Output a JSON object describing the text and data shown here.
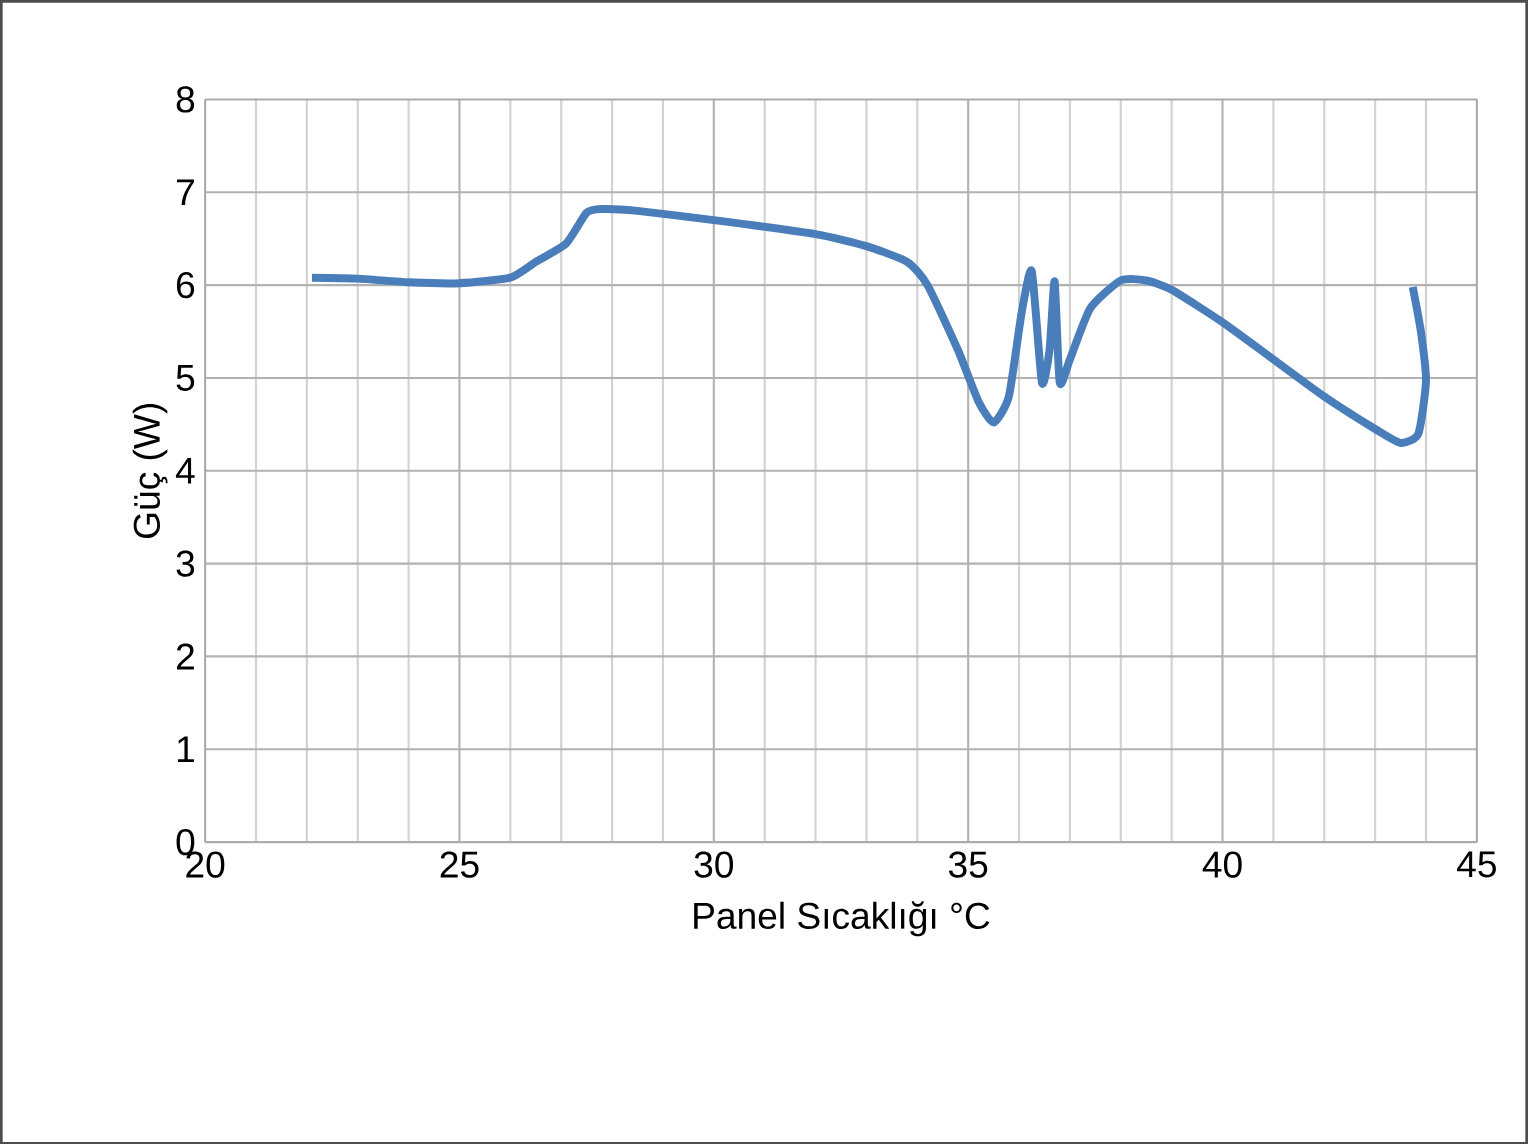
{
  "chart_data": {
    "type": "line",
    "xlabel": "Panel Sıcaklığı °C",
    "ylabel": "Güç (W)",
    "xlim": [
      20,
      45
    ],
    "ylim": [
      0,
      8
    ],
    "xticks": [
      20,
      25,
      30,
      35,
      40,
      45
    ],
    "yticks": [
      0,
      1,
      2,
      3,
      4,
      5,
      6,
      7,
      8
    ],
    "grid": true,
    "series": [
      {
        "color": "#4a7ebb",
        "x": [
          22.1,
          23,
          24,
          25,
          26,
          26.5,
          27.1,
          27.5,
          27.8,
          28.5,
          30,
          32,
          33,
          33.8,
          34.2,
          34.8,
          35.2,
          35.5,
          35.8,
          36.05,
          36.25,
          36.45,
          36.6,
          36.7,
          36.8,
          37.0,
          37.4,
          38,
          38.5,
          39,
          40,
          41,
          42,
          43,
          43.5,
          43.85,
          44.0,
          43.9,
          43.74
        ],
        "values": [
          6.08,
          6.07,
          6.03,
          6.02,
          6.08,
          6.25,
          6.45,
          6.78,
          6.82,
          6.8,
          6.7,
          6.55,
          6.42,
          6.25,
          6.0,
          5.3,
          4.75,
          4.52,
          4.8,
          5.7,
          6.15,
          4.95,
          5.3,
          6.04,
          4.95,
          5.2,
          5.75,
          6.05,
          6.05,
          5.95,
          5.6,
          5.2,
          4.8,
          4.45,
          4.3,
          4.4,
          4.97,
          5.5,
          5.98
        ]
      }
    ]
  }
}
